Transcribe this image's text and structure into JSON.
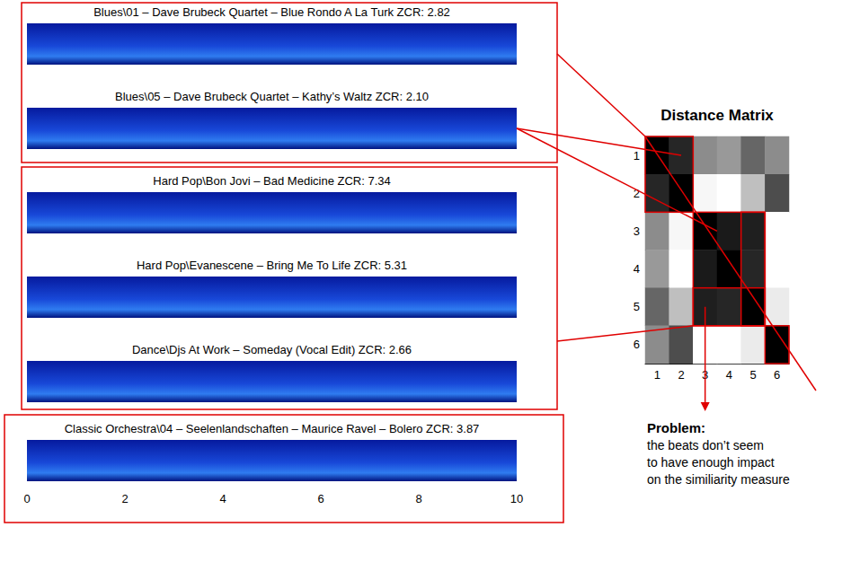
{
  "spectrograms": [
    {
      "title": "Blues\\01 – Dave Brubeck Quartet – Blue Rondo A La Turk ZCR: 2.82"
    },
    {
      "title": "Blues\\05 – Dave Brubeck Quartet – Kathy’s Waltz ZCR: 2.10"
    },
    {
      "title": "Hard Pop\\Bon Jovi – Bad Medicine ZCR: 7.34"
    },
    {
      "title": "Hard Pop\\Evanescene – Bring Me To Life ZCR: 5.31"
    },
    {
      "title": "Dance\\Djs At Work – Someday (Vocal Edit) ZCR: 2.66"
    },
    {
      "title": "Classic Orchestra\\04 – Seelenlandschaften – Maurice Ravel – Bolero ZCR: 3.87"
    }
  ],
  "time_axis": {
    "xlim": [
      0,
      10
    ],
    "xticks": [
      0,
      2,
      4,
      6,
      8,
      10
    ]
  },
  "chart_data": {
    "type": "heatmap",
    "title": "Distance Matrix",
    "categories": [
      1,
      2,
      3,
      4,
      5,
      6
    ],
    "cells": [
      [
        0,
        0.15,
        0.55,
        0.6,
        0.4,
        0.55
      ],
      [
        0.15,
        0,
        0.97,
        1.0,
        0.75,
        0.3
      ],
      [
        0.55,
        0.97,
        0,
        0.1,
        0.12,
        1.0
      ],
      [
        0.6,
        1.0,
        0.1,
        0,
        0.15,
        1.0
      ],
      [
        0.4,
        0.75,
        0.12,
        0.15,
        0,
        0.92
      ],
      [
        0.55,
        0.3,
        1.0,
        1.0,
        0.92,
        0
      ]
    ],
    "color_range": [
      0,
      1
    ]
  },
  "annotation": {
    "heading": "Problem:",
    "lines": [
      "the beats don’t seem",
      "to have enough impact",
      "on the similiarity measure"
    ]
  }
}
